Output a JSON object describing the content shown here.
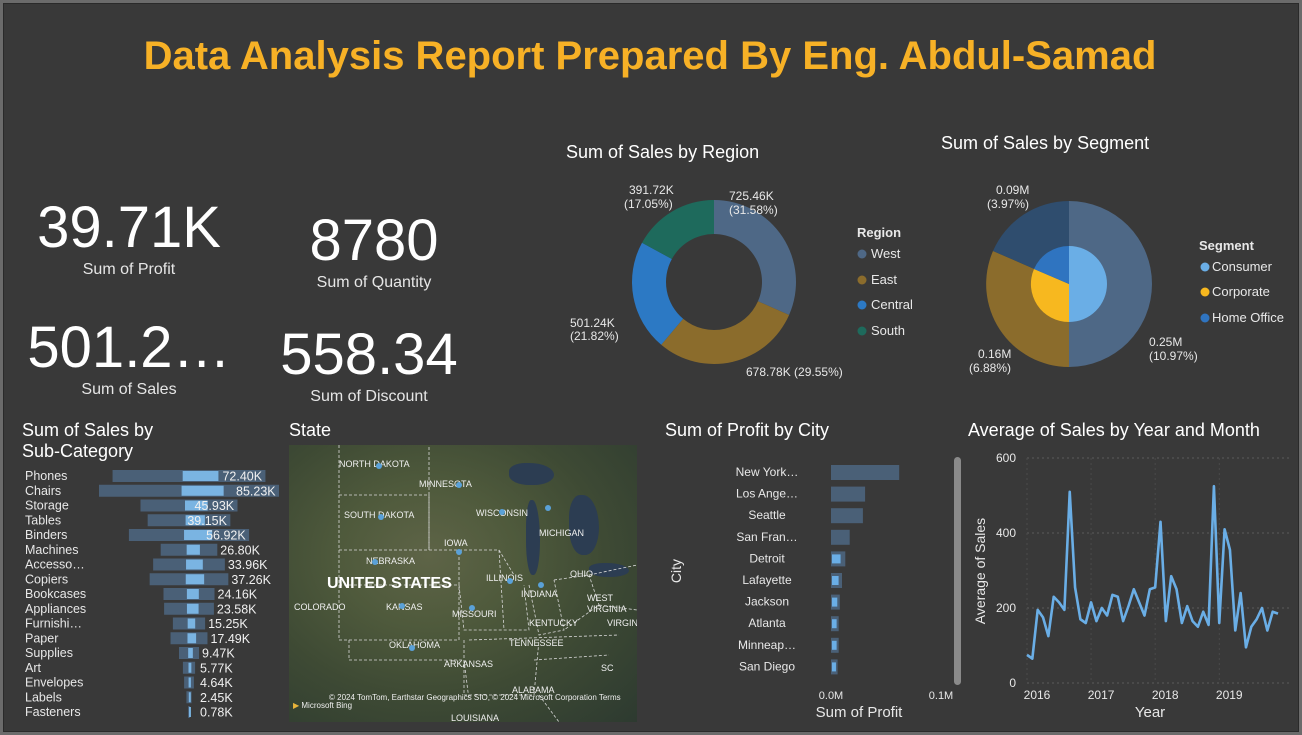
{
  "title": "Data Analysis Report Prepared By Eng. Abdul-Samad",
  "kpis": {
    "profit": {
      "value": "39.71K",
      "label": "Sum of Profit"
    },
    "quantity": {
      "value": "8780",
      "label": "Sum of Quantity"
    },
    "sales": {
      "value": "501.2…",
      "label": "Sum of Sales"
    },
    "discount": {
      "value": "558.34",
      "label": "Sum of Discount"
    }
  },
  "region_chart": {
    "title": "Sum of Sales by Region",
    "legend_title": "Region",
    "slices": [
      {
        "name": "West",
        "value": 725.46,
        "label": "725.46K",
        "pct": "(31.58%)",
        "color": "#4e6886"
      },
      {
        "name": "East",
        "value": 678.78,
        "label": "678.78K (29.55%)",
        "pct": "",
        "color": "#8b6c2c"
      },
      {
        "name": "Central",
        "value": 501.24,
        "label": "501.24K",
        "pct": "(21.82%)",
        "color": "#2c79c4"
      },
      {
        "name": "South",
        "value": 391.72,
        "label": "391.72K",
        "pct": "(17.05%)",
        "color": "#1e6a5c"
      }
    ]
  },
  "segment_chart": {
    "title": "Sum of Sales by Segment",
    "legend_title": "Segment",
    "legend": [
      {
        "name": "Consumer",
        "color": "#6aaee6"
      },
      {
        "name": "Corporate",
        "color": "#f7b81f"
      },
      {
        "name": "Home Office",
        "color": "#2f74c0"
      }
    ],
    "labels": {
      "top": [
        "0.09M",
        "(3.97%)"
      ],
      "right": [
        "0.25M",
        "(10.97%)"
      ],
      "left": [
        "0.16M",
        "(6.88%)"
      ]
    }
  },
  "subcat_chart": {
    "title_line1": "Sum of Sales by",
    "title_line2": "Sub-Category",
    "rows": [
      {
        "name": "Phones",
        "value": 72.4,
        "label": "72.40K"
      },
      {
        "name": "Chairs",
        "value": 85.23,
        "label": "85.23K"
      },
      {
        "name": "Storage",
        "value": 45.93,
        "label": "45.93K"
      },
      {
        "name": "Tables",
        "value": 39.15,
        "label": "39.15K"
      },
      {
        "name": "Binders",
        "value": 56.92,
        "label": "56.92K"
      },
      {
        "name": "Machines",
        "value": 26.8,
        "label": "26.80K"
      },
      {
        "name": "Accesso…",
        "value": 33.96,
        "label": "33.96K"
      },
      {
        "name": "Copiers",
        "value": 37.26,
        "label": "37.26K"
      },
      {
        "name": "Bookcases",
        "value": 24.16,
        "label": "24.16K"
      },
      {
        "name": "Appliances",
        "value": 23.58,
        "label": "23.58K"
      },
      {
        "name": "Furnishi…",
        "value": 15.25,
        "label": "15.25K"
      },
      {
        "name": "Paper",
        "value": 17.49,
        "label": "17.49K"
      },
      {
        "name": "Supplies",
        "value": 9.47,
        "label": "9.47K"
      },
      {
        "name": "Art",
        "value": 5.77,
        "label": "5.77K"
      },
      {
        "name": "Envelopes",
        "value": 4.64,
        "label": "4.64K"
      },
      {
        "name": "Labels",
        "value": 2.45,
        "label": "2.45K"
      },
      {
        "name": "Fasteners",
        "value": 0.78,
        "label": "0.78K"
      }
    ]
  },
  "map": {
    "title": "State",
    "country_label": "UNITED STATES",
    "attribution": "© 2024 TomTom, Earthstar Geographics SIO, © 2024 Microsoft Corporation  Terms",
    "brand": "Microsoft Bing",
    "states": [
      "NORTH DAKOTA",
      "MINNESOTA",
      "SOUTH DAKOTA",
      "WISCONSIN",
      "MICHIGAN",
      "IOWA",
      "NEBRASKA",
      "ILLINOIS",
      "INDIANA",
      "OHIO",
      "COLORADO",
      "KANSAS",
      "MISSOURI",
      "WEST VIRGINIA",
      "KENTUCKY",
      "VIRGINIA",
      "OKLAHOMA",
      "TENNESSEE",
      "ARKANSAS",
      "SC",
      "ALABAMA",
      "LOUISIANA"
    ]
  },
  "chart_data": [
    {
      "type": "bar",
      "title": "Sum of Profit by City",
      "ylabel": "City",
      "xlabel": "Sum of Profit",
      "categories": [
        "New York…",
        "Los Ange…",
        "Seattle",
        "San Fran…",
        "Detroit",
        "Lafayette",
        "Jackson",
        "Atlanta",
        "Minneap…",
        "San Diego"
      ],
      "values": [
        0.062,
        0.031,
        0.029,
        0.017,
        0.013,
        0.01,
        0.008,
        0.007,
        0.007,
        0.006
      ],
      "xticks": [
        "0.0M",
        "0.1M"
      ],
      "xlim": [
        0,
        0.1
      ]
    },
    {
      "type": "line",
      "title": "Average of Sales by Year and Month",
      "xlabel": "Year",
      "ylabel": "Average of Sales",
      "xticks": [
        "2016",
        "2017",
        "2018",
        "2019"
      ],
      "yticks": [
        "0",
        "200",
        "400",
        "600"
      ],
      "ylim": [
        0,
        600
      ],
      "x": [
        "2016-01",
        "2016-02",
        "2016-03",
        "2016-04",
        "2016-05",
        "2016-06",
        "2016-07",
        "2016-08",
        "2016-09",
        "2016-10",
        "2016-11",
        "2016-12",
        "2017-01",
        "2017-02",
        "2017-03",
        "2017-04",
        "2017-05",
        "2017-06",
        "2017-07",
        "2017-08",
        "2017-09",
        "2017-10",
        "2017-11",
        "2017-12",
        "2018-01",
        "2018-02",
        "2018-03",
        "2018-04",
        "2018-05",
        "2018-06",
        "2018-07",
        "2018-08",
        "2018-09",
        "2018-10",
        "2018-11",
        "2018-12",
        "2019-01",
        "2019-02",
        "2019-03",
        "2019-04",
        "2019-05",
        "2019-06",
        "2019-07",
        "2019-08",
        "2019-09",
        "2019-10",
        "2019-11",
        "2019-12"
      ],
      "values": [
        75,
        65,
        195,
        175,
        125,
        230,
        215,
        195,
        510,
        255,
        170,
        160,
        215,
        165,
        200,
        180,
        235,
        230,
        165,
        205,
        250,
        215,
        180,
        250,
        255,
        430,
        165,
        285,
        250,
        160,
        205,
        165,
        150,
        190,
        155,
        525,
        160,
        410,
        355,
        140,
        240,
        95,
        150,
        170,
        200,
        140,
        190,
        185
      ]
    }
  ],
  "city_chart_title": "Sum of Profit by City",
  "line_chart_title": "Average of Sales by Year and Month"
}
